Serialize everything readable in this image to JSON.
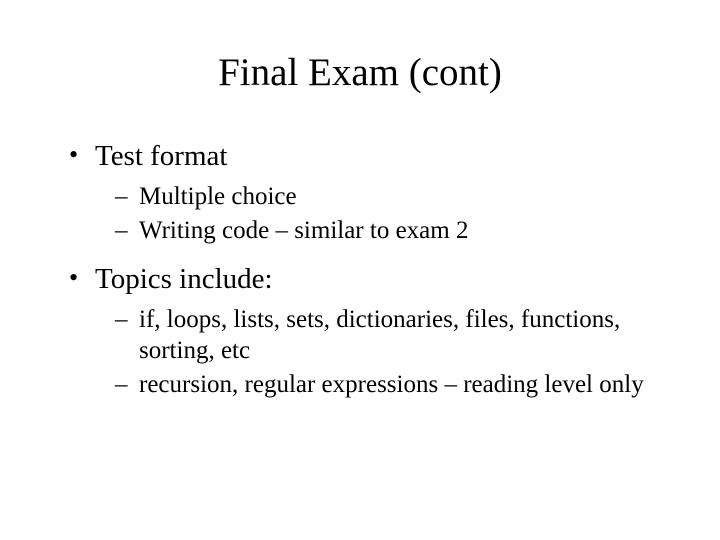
{
  "slide": {
    "title": "Final Exam (cont)",
    "bullets": [
      {
        "text": "Test format",
        "sub": [
          "Multiple choice",
          "Writing code – similar to exam 2"
        ]
      },
      {
        "text": "Topics include:",
        "sub": [
          "if, loops, lists, sets, dictionaries, files, functions, sorting, etc",
          "recursion, regular expressions – reading level only"
        ]
      }
    ]
  },
  "style": {
    "background_color": "#ffffff",
    "text_color": "#000000",
    "font_family": "Times New Roman",
    "title_fontsize": 39,
    "level1_fontsize": 29,
    "level2_fontsize": 25,
    "level1_marker": "•",
    "level2_marker": "–"
  }
}
